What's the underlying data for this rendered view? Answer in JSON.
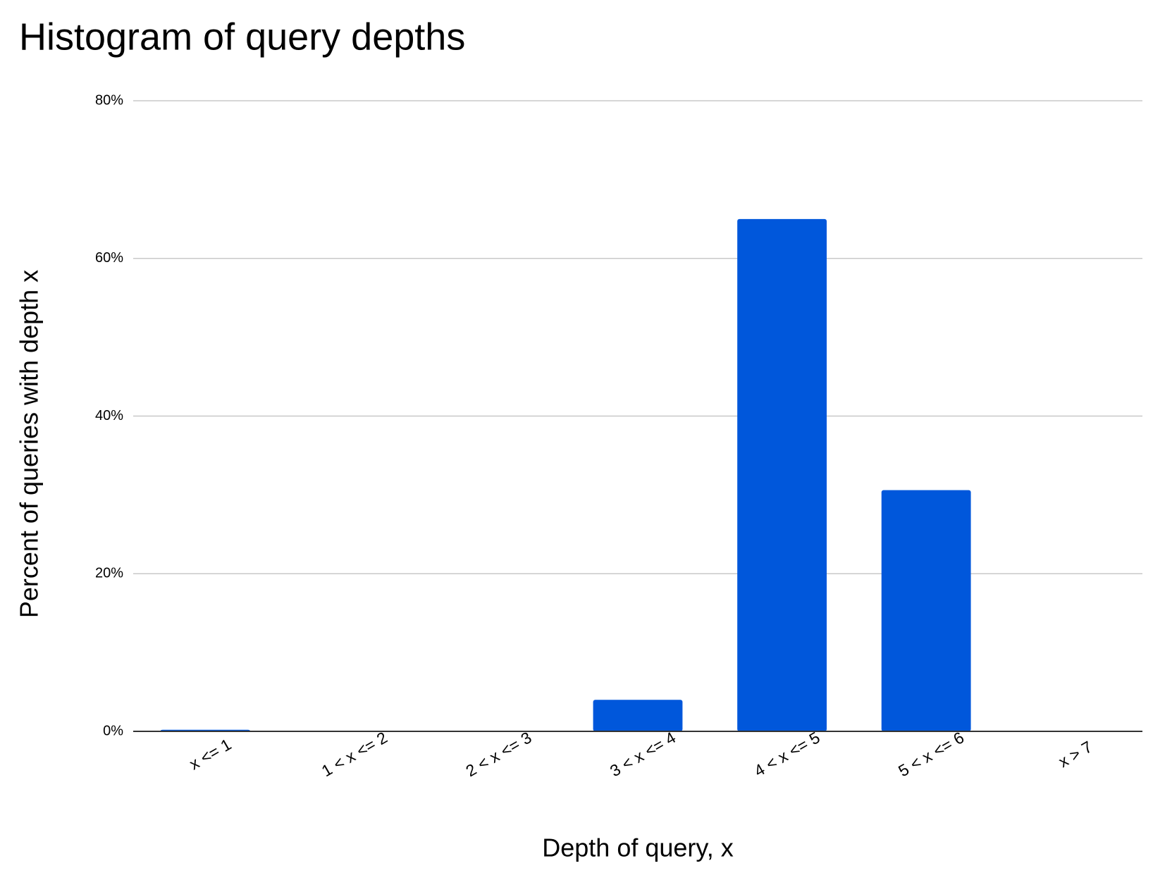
{
  "chart_data": {
    "type": "bar",
    "title": "Histogram of query depths",
    "x_label": "Depth of query, x",
    "y_label": "Percent of queries with depth x",
    "categories": [
      "x <= 1",
      "1 < x <= 2",
      "2 < x <= 3",
      "3 < x <= 4",
      "4 < x <= 5",
      "5 < x <= 6",
      "x > 7"
    ],
    "values": [
      0.2,
      0,
      0,
      4,
      65,
      30.6,
      0
    ],
    "color": "#0057db",
    "ylim": [
      0,
      80
    ],
    "yticks": [
      {
        "value": 0,
        "label": "0%"
      },
      {
        "value": 20,
        "label": "20%"
      },
      {
        "value": 40,
        "label": "40%"
      },
      {
        "value": 60,
        "label": "60%"
      },
      {
        "value": 80,
        "label": "80%"
      }
    ],
    "grid": true
  }
}
